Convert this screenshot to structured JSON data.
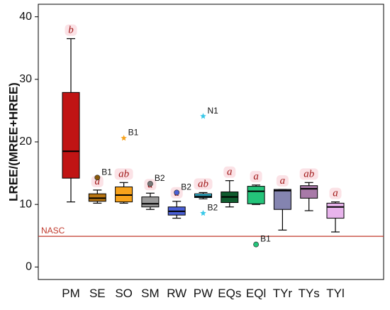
{
  "chart_data": {
    "type": "box",
    "ylabel": "LREE/(MREE+HREE)",
    "ylim": [
      -2,
      42
    ],
    "yticks": [
      0,
      10,
      20,
      30,
      40
    ],
    "grid": false,
    "reference_line": {
      "label": "NASC",
      "value": 4.9,
      "color": "#c0392b"
    },
    "categories": [
      "PM",
      "SE",
      "SO",
      "SM",
      "RW",
      "PW",
      "EQs",
      "EQl",
      "TYr",
      "TYs",
      "TYl"
    ],
    "boxes": [
      {
        "category": "PM",
        "min": 10.4,
        "q1": 14.2,
        "median": 18.5,
        "q3": 27.9,
        "max": 36.5,
        "color": "#c01414",
        "letter": "b"
      },
      {
        "category": "SE",
        "min": 10.2,
        "q1": 10.5,
        "median": 11.0,
        "q3": 11.7,
        "max": 12.3,
        "color": "#b87512",
        "letter": "a"
      },
      {
        "category": "SO",
        "min": 10.2,
        "q1": 10.4,
        "median": 11.5,
        "q3": 12.8,
        "max": 13.5,
        "color": "#f7a21b",
        "letter": "ab"
      },
      {
        "category": "SM",
        "min": 9.2,
        "q1": 9.6,
        "median": 10.1,
        "q3": 11.2,
        "max": 11.8,
        "color": "#9a9a9a",
        "letter": "a"
      },
      {
        "category": "RW",
        "min": 7.8,
        "q1": 8.3,
        "median": 8.9,
        "q3": 9.6,
        "max": 10.5,
        "color": "#4a5fd6",
        "letter": "a"
      },
      {
        "category": "PW",
        "min": 10.9,
        "q1": 11.1,
        "median": 11.3,
        "q3": 11.7,
        "max": 11.9,
        "color": "#38c8e8",
        "letter": "ab"
      },
      {
        "category": "EQs",
        "min": 9.6,
        "q1": 10.3,
        "median": 11.2,
        "q3": 12.0,
        "max": 13.8,
        "color": "#0f5c2e",
        "letter": "a"
      },
      {
        "category": "EQl",
        "min": 10.0,
        "q1": 10.1,
        "median": 12.1,
        "q3": 12.9,
        "max": 13.1,
        "color": "#24c47a",
        "letter": "a"
      },
      {
        "category": "TYr",
        "min": 5.9,
        "q1": 9.2,
        "median": 12.2,
        "q3": 12.4,
        "max": 12.4,
        "color": "#8484b0",
        "letter": "a"
      },
      {
        "category": "TYs",
        "min": 9.0,
        "q1": 11.0,
        "median": 12.5,
        "q3": 13.0,
        "max": 13.5,
        "color": "#a87aa8",
        "letter": "ab"
      },
      {
        "category": "TYl",
        "min": 5.6,
        "q1": 7.8,
        "median": 9.6,
        "q3": 10.2,
        "max": 10.4,
        "color": "#e8b4ec",
        "letter": "a"
      }
    ],
    "outliers": [
      {
        "category": "SE",
        "value": 14.3,
        "label": "B1",
        "marker": "circle",
        "color": "#8a5a0a"
      },
      {
        "category": "SO",
        "value": 20.6,
        "label": "B1",
        "marker": "star",
        "color": "#f7a21b"
      },
      {
        "category": "SM",
        "value": 13.3,
        "label": "B2",
        "marker": "circle",
        "color": "#777777"
      },
      {
        "category": "RW",
        "value": 11.9,
        "label": "B2",
        "marker": "circle",
        "color": "#4a5fd6"
      },
      {
        "category": "PW",
        "value": 24.1,
        "label": "N1",
        "marker": "star",
        "color": "#38c8e8"
      },
      {
        "category": "PW",
        "value": 8.6,
        "label": "B2",
        "marker": "star",
        "color": "#38c8e8"
      },
      {
        "category": "EQl",
        "value": 3.6,
        "label": "B1",
        "marker": "circle",
        "color": "#24c47a"
      }
    ]
  }
}
